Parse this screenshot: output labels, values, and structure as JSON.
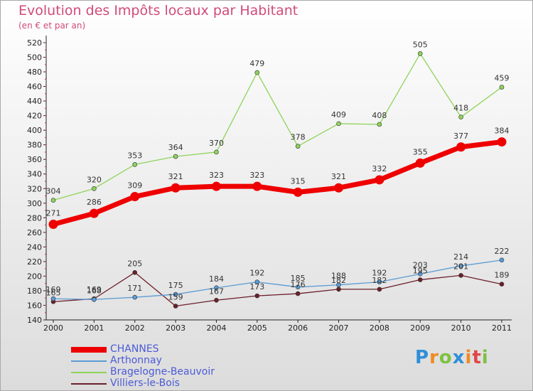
{
  "title": "Evolution des Impôts locaux par Habitant",
  "subtitle": "(en € et par an)",
  "logo": "Proxiti",
  "chart_data": {
    "type": "line",
    "title": "Evolution des Impôts locaux par Habitant",
    "subtitle": "(en € et par an)",
    "x": [
      "2000",
      "2001",
      "2002",
      "2003",
      "2004",
      "2005",
      "2006",
      "2007",
      "2008",
      "2009",
      "2010",
      "2011"
    ],
    "ylim": [
      140,
      520
    ],
    "ytick_step": 20,
    "grid": false,
    "legend_position": "bottom-left",
    "series": [
      {
        "name": "CHANNES",
        "color": "#ee0000",
        "values": [
          271,
          286,
          309,
          321,
          323,
          323,
          315,
          321,
          332,
          355,
          377,
          384
        ]
      },
      {
        "name": "Arthonnay",
        "color": "#5b9bd5",
        "values": [
          169,
          168,
          171,
          175,
          184,
          192,
          185,
          188,
          192,
          203,
          214,
          222
        ]
      },
      {
        "name": "Bragelogne-Beauvoir",
        "color": "#8fd45a",
        "values": [
          304,
          320,
          353,
          364,
          370,
          479,
          378,
          409,
          408,
          505,
          418,
          459
        ]
      },
      {
        "name": "Villiers-le-Bois",
        "color": "#6b1f2a",
        "values": [
          165,
          169,
          205,
          159,
          167,
          173,
          176,
          182,
          182,
          195,
          201,
          189
        ]
      }
    ]
  }
}
